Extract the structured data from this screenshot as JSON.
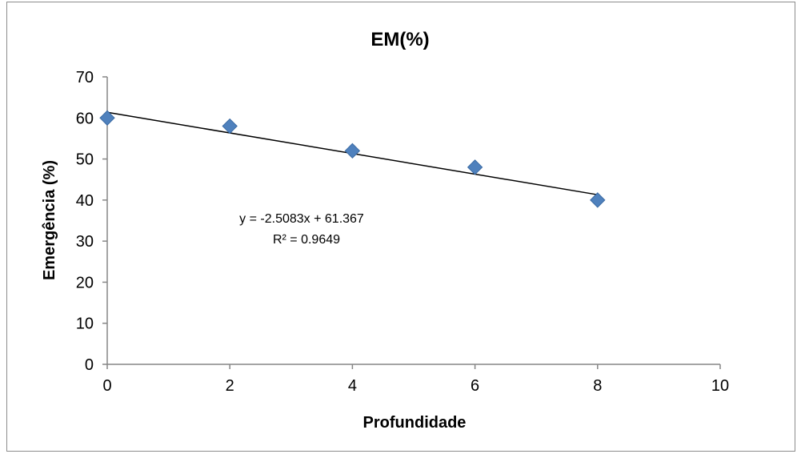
{
  "chart_data": {
    "type": "scatter",
    "title": "EM(%)",
    "xlabel": "Profundidade",
    "ylabel": "Emergência (%)",
    "xlim": [
      0,
      10
    ],
    "ylim": [
      0,
      70
    ],
    "x_ticks": [
      "0",
      "2",
      "4",
      "6",
      "8",
      "10"
    ],
    "y_ticks": [
      "0",
      "10",
      "20",
      "30",
      "40",
      "50",
      "60",
      "70"
    ],
    "grid": false,
    "legend": "none",
    "series": [
      {
        "marker": "diamond",
        "color": "#4f81bd",
        "x": [
          0,
          2,
          4,
          6,
          8
        ],
        "y": [
          60,
          58,
          52,
          48,
          40
        ]
      }
    ],
    "trendline": {
      "type": "linear",
      "slope": -2.5083,
      "intercept": 61.367,
      "x_range": [
        0,
        8
      ],
      "color": "#000000",
      "equation_label": "y = -2.5083x + 61.367",
      "r2_label": "R² = 0.9649"
    }
  }
}
